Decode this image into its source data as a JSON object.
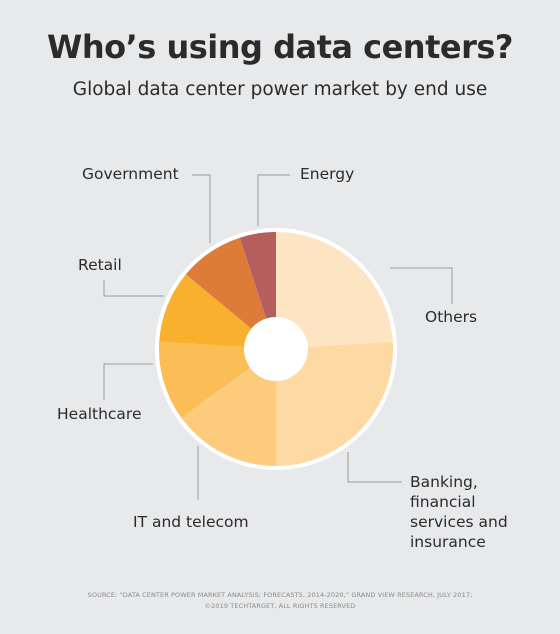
{
  "title": "Who’s using data centers?",
  "subtitle": "Global data center power market by end use",
  "chart_data": {
    "type": "pie",
    "donut": true,
    "slices": [
      {
        "label": "Others",
        "value": 24,
        "color": "#fde5c3"
      },
      {
        "label": "Banking, financial services and insurance",
        "lines": [
          "Banking,",
          "financial",
          "services and",
          "insurance"
        ],
        "value": 26,
        "color": "#fdd9a4"
      },
      {
        "label": "IT and telecom",
        "value": 15,
        "color": "#fdcb7c"
      },
      {
        "label": "Healthcare",
        "value": 11,
        "color": "#fbbd55"
      },
      {
        "label": "Retail",
        "value": 10,
        "color": "#f9b02e"
      },
      {
        "label": "Government",
        "value": 9,
        "color": "#dd7b39"
      },
      {
        "label": "Energy",
        "value": 5,
        "color": "#b45e5e"
      }
    ]
  },
  "footer": {
    "source": "SOURCE: “DATA CENTER POWER MARKET ANALYSIS; FORECASTS, 2014-2020,” GRAND VIEW RESEARCH, JULY 2017;",
    "copyright": "©2019 TECHTARGET, ALL RIGHTS RESERVED"
  }
}
